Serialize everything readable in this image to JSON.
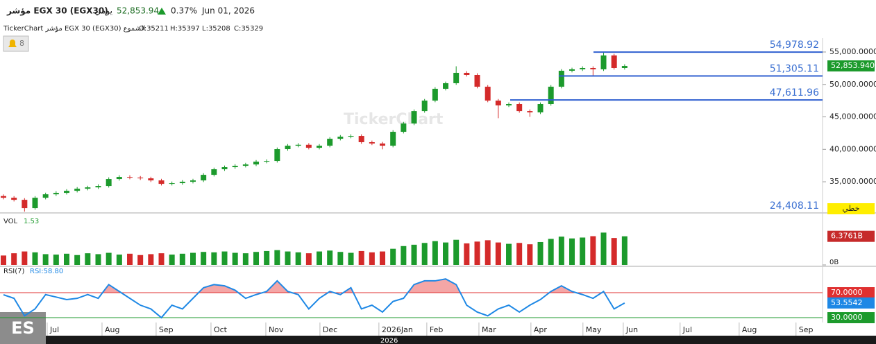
{
  "header": {
    "symbol": "مؤشر EGX 30 (EGX30)",
    "period": "يومي",
    "price": "52,853.94",
    "change": "0.37%",
    "date": "Jun 01, 2026",
    "info": [
      "TickerChart مؤشر EGX 30 (EGX30) الشموع",
      "O:35211",
      "H:35397",
      "L:35208",
      "C:35329"
    ],
    "alerts": "8",
    "watermark": "TickerChart",
    "line_style": "خطي",
    "corner": "ES",
    "year": "2026"
  },
  "chart_data": [
    {
      "type": "candlestick",
      "up_color": "#1c9a2c",
      "down_color": "#d42a2a",
      "ohlc": [
        [
          32800,
          33050,
          32290,
          32540
        ],
        [
          32540,
          32790,
          31970,
          32220
        ],
        [
          32220,
          32470,
          30400,
          30940
        ],
        [
          30940,
          32790,
          30690,
          32540
        ],
        [
          32540,
          33320,
          32290,
          33070
        ],
        [
          33070,
          33540,
          32820,
          33290
        ],
        [
          33290,
          33860,
          33040,
          33610
        ],
        [
          33610,
          34180,
          33360,
          33930
        ],
        [
          33930,
          34390,
          33680,
          34140
        ],
        [
          34140,
          34610,
          33890,
          34360
        ],
        [
          34360,
          35680,
          34110,
          35430
        ],
        [
          35430,
          36000,
          35180,
          35750
        ],
        [
          35750,
          36000,
          35390,
          35640
        ],
        [
          35640,
          35890,
          35280,
          35530
        ],
        [
          35530,
          35780,
          34960,
          35210
        ],
        [
          35210,
          35460,
          34430,
          34680
        ],
        [
          34680,
          35040,
          34430,
          34790
        ],
        [
          34790,
          35250,
          34540,
          35000
        ],
        [
          35000,
          35460,
          34750,
          35210
        ],
        [
          35210,
          36320,
          34960,
          36070
        ],
        [
          36070,
          37180,
          35820,
          36930
        ],
        [
          36930,
          37500,
          36680,
          37250
        ],
        [
          37250,
          37710,
          37000,
          37460
        ],
        [
          37460,
          37920,
          37210,
          37670
        ],
        [
          37670,
          38350,
          37420,
          38100
        ],
        [
          38100,
          38460,
          37850,
          38210
        ],
        [
          38210,
          40280,
          37960,
          40030
        ],
        [
          40030,
          40810,
          39780,
          40560
        ],
        [
          40560,
          40950,
          40310,
          40700
        ],
        [
          40700,
          40950,
          39990,
          40240
        ],
        [
          40240,
          40810,
          39990,
          40560
        ],
        [
          40560,
          41880,
          40310,
          41630
        ],
        [
          41630,
          42200,
          41380,
          41950
        ],
        [
          41950,
          42310,
          41700,
          42060
        ],
        [
          42060,
          42310,
          40850,
          41100
        ],
        [
          41100,
          41350,
          40650,
          40900
        ],
        [
          40900,
          41150,
          40000,
          40560
        ],
        [
          40560,
          42950,
          40310,
          42700
        ],
        [
          42700,
          44230,
          42450,
          43980
        ],
        [
          43980,
          46150,
          43730,
          45900
        ],
        [
          45900,
          47760,
          45650,
          47510
        ],
        [
          47510,
          49580,
          47260,
          49330
        ],
        [
          49330,
          50440,
          49080,
          50190
        ],
        [
          50190,
          52800,
          49940,
          51790
        ],
        [
          51790,
          52040,
          51220,
          51470
        ],
        [
          51470,
          51720,
          49400,
          49650
        ],
        [
          49650,
          49900,
          47260,
          47510
        ],
        [
          47510,
          47760,
          44800,
          46770
        ],
        [
          46770,
          47230,
          46520,
          46980
        ],
        [
          46980,
          47230,
          45650,
          45900
        ],
        [
          45900,
          46150,
          45000,
          45690
        ],
        [
          45690,
          47230,
          45440,
          46980
        ],
        [
          46980,
          49900,
          46730,
          49650
        ],
        [
          49650,
          52360,
          49400,
          52110
        ],
        [
          52110,
          52580,
          51860,
          52330
        ],
        [
          52330,
          52790,
          52080,
          52540
        ],
        [
          52540,
          52790,
          51300,
          52330
        ],
        [
          52330,
          54980,
          52080,
          54470
        ],
        [
          54470,
          54720,
          52290,
          52540
        ],
        [
          52540,
          53100,
          52290,
          52854
        ]
      ],
      "ylim": [
        30200,
        56600
      ],
      "yticks": [
        {
          "value": 35000,
          "label": "35,000.0000"
        },
        {
          "value": 40000,
          "label": "40,000.0000"
        },
        {
          "value": 45000,
          "label": "45,000.0000"
        },
        {
          "value": 50000,
          "label": "50,000.0000"
        },
        {
          "value": 55000,
          "label": "55,000.0000"
        }
      ],
      "xlim": [
        -0.33,
        77.8
      ],
      "xticks": [
        {
          "value": 4.15,
          "label": "Jul"
        },
        {
          "value": 9.36,
          "label": "Aug"
        },
        {
          "value": 14.5,
          "label": "Sep"
        },
        {
          "value": 19.71,
          "label": "Oct"
        },
        {
          "value": 24.92,
          "label": "Nov"
        },
        {
          "value": 30.06,
          "label": "Dec"
        },
        {
          "value": 35.66,
          "label": "2026Jan"
        },
        {
          "value": 40.21,
          "label": "Feb"
        },
        {
          "value": 45.16,
          "label": "Mar"
        },
        {
          "value": 50.1,
          "label": "Apr"
        },
        {
          "value": 55.04,
          "label": "May"
        },
        {
          "value": 58.87,
          "label": "Jun"
        },
        {
          "value": 64.27,
          "label": "Jul"
        },
        {
          "value": 69.88,
          "label": "Aug"
        },
        {
          "value": 75.28,
          "label": "Sep"
        }
      ],
      "levels": [
        {
          "value": 54978.92,
          "label": "54,978.92"
        },
        {
          "value": 51305.11,
          "label": "51,305.11"
        },
        {
          "value": 47611.96,
          "label": "47,611.96"
        },
        {
          "value": 24408.11,
          "label": "24,408.11"
        }
      ],
      "level_color": "#2f5fd0",
      "last": {
        "value": 52853.94,
        "label": "52,853.9400"
      }
    },
    {
      "type": "bar",
      "title": "VOL",
      "indicator": "1.53",
      "values": [
        2.1,
        2.6,
        3.0,
        2.8,
        2.4,
        2.3,
        2.5,
        2.2,
        2.6,
        2.4,
        2.7,
        2.3,
        2.5,
        2.2,
        2.4,
        2.6,
        2.3,
        2.5,
        2.7,
        2.9,
        2.8,
        3.0,
        2.7,
        2.6,
        2.9,
        3.1,
        3.3,
        3.0,
        2.8,
        2.6,
        3.0,
        3.2,
        2.9,
        2.7,
        3.1,
        2.8,
        3.0,
        3.6,
        4.2,
        4.5,
        4.9,
        5.3,
        5.0,
        5.6,
        4.8,
        5.2,
        5.5,
        5.0,
        4.7,
        4.9,
        4.6,
        5.1,
        5.8,
        6.3,
        5.9,
        6.1,
        6.4,
        7.2,
        6.0,
        6.3761
      ],
      "ylim": [
        0,
        8.8
      ],
      "yticks": [
        {
          "value": 0,
          "label": "0B"
        }
      ],
      "last": {
        "value": 6.3761,
        "label": "6.3761B"
      }
    },
    {
      "type": "line",
      "title": "RSI(7)",
      "indicator": "RSI:58.80",
      "color": "#1e88e5",
      "values": [
        66.7,
        61,
        33,
        44,
        67,
        63,
        59,
        61,
        67,
        61,
        83,
        72,
        61,
        50,
        44,
        30,
        50,
        44,
        61,
        78,
        83,
        81,
        74,
        61,
        67,
        72,
        89,
        72,
        67,
        44,
        61,
        72,
        67,
        78,
        44,
        50,
        39,
        56,
        61,
        83,
        89,
        89,
        92,
        83,
        50,
        39,
        33,
        44,
        50,
        39,
        50,
        59,
        72,
        81,
        72,
        67,
        61,
        72,
        44,
        53.5542
      ],
      "ylim": [
        25.6,
        107.8
      ],
      "yticks": [
        {
          "value": 70,
          "label": "70.0000",
          "color": "#e03030"
        },
        {
          "value": 30,
          "label": "30.0000",
          "color": "#1c9a2c"
        }
      ],
      "last": {
        "value": 53.5542,
        "label": "53.5542"
      }
    }
  ]
}
